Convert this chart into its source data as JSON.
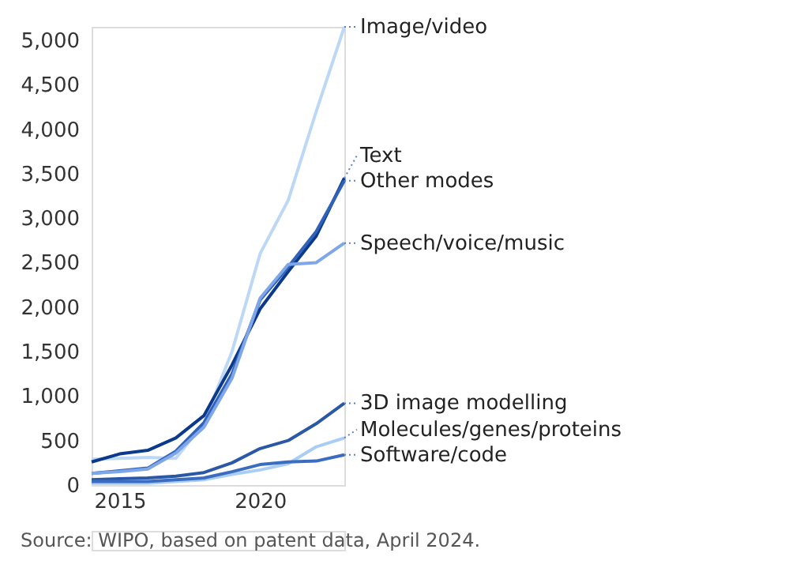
{
  "chart_data": {
    "type": "line",
    "x": [
      2014,
      2015,
      2016,
      2017,
      2018,
      2019,
      2020,
      2021,
      2022,
      2023
    ],
    "xlim": [
      2014,
      2023
    ],
    "xticks": [
      2015,
      2020
    ],
    "ylim": [
      0,
      5150
    ],
    "yticks": [
      0,
      500,
      {
        "value": 1000,
        "label": "1,000"
      },
      {
        "value": 1500,
        "label": "1,500"
      },
      {
        "value": 2000,
        "label": "2,000"
      },
      {
        "value": 2500,
        "label": "2,500"
      },
      {
        "value": 3000,
        "label": "3,000"
      },
      {
        "value": 3500,
        "label": "3,500"
      },
      {
        "value": 4000,
        "label": "4,000"
      },
      {
        "value": 4500,
        "label": "4,500"
      },
      {
        "value": 5000,
        "label": "5,000"
      }
    ],
    "grid": false,
    "legend": false,
    "marker": "none",
    "line_style": "solid",
    "series": [
      {
        "name": "Image/video",
        "color": "#bcd8f6",
        "values": [
          290,
          300,
          310,
          300,
          700,
          1500,
          2600,
          3200,
          4200,
          5150
        ]
      },
      {
        "name": "Text",
        "color": "#0b3a8c",
        "values": [
          260,
          350,
          390,
          530,
          780,
          1350,
          1980,
          2400,
          2800,
          3450
        ]
      },
      {
        "name": "Other modes",
        "color": "#2f62b8",
        "values": [
          130,
          160,
          190,
          380,
          700,
          1250,
          2080,
          2450,
          2850,
          3420
        ]
      },
      {
        "name": "Speech/voice/music",
        "color": "#7fa6e8",
        "values": [
          130,
          150,
          180,
          360,
          650,
          1200,
          2100,
          2480,
          2500,
          2720
        ]
      },
      {
        "name": "3D image modelling",
        "color": "#2a58a6",
        "values": [
          60,
          70,
          80,
          100,
          140,
          250,
          410,
          500,
          690,
          920
        ]
      },
      {
        "name": "Molecules/genes/proteins",
        "color": "#aacdf5",
        "values": [
          20,
          20,
          20,
          40,
          60,
          120,
          170,
          240,
          430,
          530
        ]
      },
      {
        "name": "Software/code",
        "color": "#3a6cc0",
        "values": [
          40,
          40,
          40,
          60,
          80,
          150,
          230,
          260,
          270,
          340
        ]
      }
    ],
    "annotations": [
      "Source: WIPO, based on patent data, April 2024."
    ]
  }
}
